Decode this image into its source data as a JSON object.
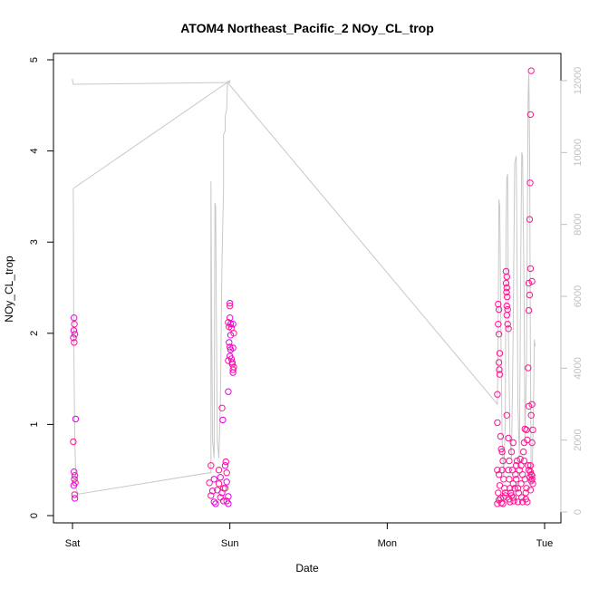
{
  "chart_data": {
    "type": "scatter",
    "title": "ATOM4 Northeast_Pacific_2 NOy_CL_trop",
    "xlabel": "Date",
    "ylabel": "NOy_CL_trop",
    "xlim": [
      0,
      3
    ],
    "x_ticks": [
      {
        "value": 0,
        "label": "Sat"
      },
      {
        "value": 1,
        "label": "Sun"
      },
      {
        "value": 2,
        "label": "Mon"
      },
      {
        "value": 3,
        "label": "Tue"
      }
    ],
    "ylim": [
      0,
      5
    ],
    "y_ticks": [
      0,
      1,
      2,
      3,
      4,
      5
    ],
    "y2lim": [
      0,
      12000
    ],
    "y2_ticks": [
      0,
      2000,
      4000,
      6000,
      8000,
      10000,
      12000
    ],
    "grid": false,
    "colors": {
      "points": "#ff1493",
      "points_alt": "#e600e6",
      "line": "#c8c8c8",
      "frame": "#000000",
      "secondary_axis": "#c0c0c0"
    },
    "series": [
      {
        "kind": "points",
        "values": [
          [
            0.01,
            2.17
          ],
          [
            0.012,
            2.1
          ],
          [
            0.008,
            2.03
          ],
          [
            0.015,
            1.99
          ],
          [
            0.006,
            1.95
          ],
          [
            0.011,
            1.9
          ],
          [
            0.02,
            1.06
          ],
          [
            0.005,
            0.81
          ],
          [
            0.01,
            0.48
          ],
          [
            0.015,
            0.44
          ],
          [
            0.012,
            0.4
          ],
          [
            0.018,
            0.36
          ],
          [
            0.008,
            0.33
          ],
          [
            0.013,
            0.23
          ],
          [
            0.015,
            0.19
          ],
          [
            0.88,
            0.55
          ],
          [
            0.9,
            0.4
          ],
          [
            0.87,
            0.36
          ],
          [
            0.89,
            0.27
          ],
          [
            0.88,
            0.22
          ],
          [
            0.9,
            0.15
          ],
          [
            0.92,
            0.28
          ],
          [
            0.91,
            0.13
          ],
          [
            0.93,
            0.5
          ],
          [
            0.94,
            0.42
          ],
          [
            0.93,
            0.35
          ],
          [
            0.95,
            0.25
          ],
          [
            0.94,
            0.2
          ],
          [
            0.96,
            0.16
          ],
          [
            0.95,
            1.18
          ],
          [
            0.955,
            1.05
          ],
          [
            0.96,
            0.3
          ],
          [
            0.97,
            0.55
          ],
          [
            0.98,
            0.47
          ],
          [
            0.98,
            0.37
          ],
          [
            0.97,
            0.3
          ],
          [
            0.99,
            0.21
          ],
          [
            0.98,
            0.16
          ],
          [
            0.99,
            0.13
          ],
          [
            0.975,
            0.59
          ],
          [
            0.99,
            1.36
          ],
          [
            0.99,
            1.7
          ],
          [
            0.995,
            1.9
          ],
          [
            0.995,
            2.07
          ],
          [
            1.0,
            2.33
          ],
          [
            1.0,
            2.3
          ],
          [
            1.0,
            2.17
          ],
          [
            0.99,
            2.12
          ],
          [
            1.005,
            2.1
          ],
          [
            1.01,
            2.06
          ],
          [
            1.005,
            1.98
          ],
          [
            1.0,
            1.85
          ],
          [
            1.005,
            1.82
          ],
          [
            1.01,
            1.72
          ],
          [
            1.015,
            1.68
          ],
          [
            1.02,
            1.6
          ],
          [
            1.02,
            1.57
          ],
          [
            1.015,
            1.66
          ],
          [
            1.02,
            1.84
          ],
          [
            1.025,
            2.0
          ],
          [
            1.02,
            2.1
          ],
          [
            1.025,
            1.63
          ],
          [
            1.0,
            1.75
          ],
          [
            2.705,
            2.32
          ],
          [
            2.71,
            2.26
          ],
          [
            2.705,
            2.1
          ],
          [
            2.71,
            1.99
          ],
          [
            2.715,
            1.78
          ],
          [
            2.71,
            1.68
          ],
          [
            2.712,
            1.6
          ],
          [
            2.715,
            1.55
          ],
          [
            2.7,
            1.33
          ],
          [
            2.7,
            1.02
          ],
          [
            2.72,
            0.87
          ],
          [
            2.725,
            0.73
          ],
          [
            2.7,
            0.5
          ],
          [
            2.71,
            0.45
          ],
          [
            2.715,
            0.33
          ],
          [
            2.705,
            0.25
          ],
          [
            2.71,
            0.17
          ],
          [
            2.7,
            0.13
          ],
          [
            2.72,
            0.19
          ],
          [
            2.725,
            0.14
          ],
          [
            2.73,
            0.7
          ],
          [
            2.735,
            0.6
          ],
          [
            2.73,
            0.5
          ],
          [
            2.74,
            0.4
          ],
          [
            2.745,
            0.3
          ],
          [
            2.74,
            0.2
          ],
          [
            2.735,
            0.13
          ],
          [
            2.75,
            0.25
          ],
          [
            2.75,
            0.22
          ],
          [
            2.755,
            2.68
          ],
          [
            2.76,
            2.62
          ],
          [
            2.755,
            2.55
          ],
          [
            2.76,
            2.5
          ],
          [
            2.758,
            2.45
          ],
          [
            2.762,
            2.4
          ],
          [
            2.76,
            2.3
          ],
          [
            2.765,
            2.26
          ],
          [
            2.76,
            2.2
          ],
          [
            2.765,
            2.1
          ],
          [
            2.77,
            2.05
          ],
          [
            2.76,
            1.1
          ],
          [
            2.77,
            0.85
          ],
          [
            2.775,
            0.6
          ],
          [
            2.77,
            0.5
          ],
          [
            2.775,
            0.4
          ],
          [
            2.78,
            0.3
          ],
          [
            2.775,
            0.18
          ],
          [
            2.78,
            0.15
          ],
          [
            2.785,
            0.25
          ],
          [
            2.79,
            0.22
          ],
          [
            2.79,
            0.7
          ],
          [
            2.8,
            0.8
          ],
          [
            2.795,
            0.5
          ],
          [
            2.8,
            0.35
          ],
          [
            2.8,
            0.2
          ],
          [
            2.805,
            0.16
          ],
          [
            2.81,
            0.3
          ],
          [
            2.815,
            0.45
          ],
          [
            2.82,
            0.55
          ],
          [
            2.825,
            0.6
          ],
          [
            2.82,
            0.4
          ],
          [
            2.83,
            0.3
          ],
          [
            2.83,
            0.15
          ],
          [
            2.835,
            0.25
          ],
          [
            2.84,
            0.5
          ],
          [
            2.845,
            0.62
          ],
          [
            2.85,
            0.55
          ],
          [
            2.85,
            0.35
          ],
          [
            2.855,
            0.2
          ],
          [
            2.86,
            0.15
          ],
          [
            2.86,
            0.45
          ],
          [
            2.865,
            0.7
          ],
          [
            2.87,
            0.8
          ],
          [
            2.87,
            0.6
          ],
          [
            2.875,
            0.4
          ],
          [
            2.88,
            0.25
          ],
          [
            2.88,
            0.18
          ],
          [
            2.875,
            0.95
          ],
          [
            2.885,
            0.94
          ],
          [
            2.89,
            0.83
          ],
          [
            2.885,
            0.3
          ],
          [
            2.89,
            0.15
          ],
          [
            2.895,
            0.55
          ],
          [
            2.895,
            1.62
          ],
          [
            2.9,
            2.25
          ],
          [
            2.905,
            2.42
          ],
          [
            2.9,
            2.55
          ],
          [
            2.91,
            2.71
          ],
          [
            2.905,
            3.25
          ],
          [
            2.908,
            3.65
          ],
          [
            2.91,
            4.4
          ],
          [
            2.915,
            4.88
          ],
          [
            2.92,
            2.57
          ],
          [
            2.915,
            1.1
          ],
          [
            2.92,
            1.22
          ],
          [
            2.925,
            0.94
          ],
          [
            2.92,
            0.8
          ],
          [
            2.91,
            0.55
          ],
          [
            2.915,
            0.45
          ],
          [
            2.92,
            0.4
          ],
          [
            2.925,
            0.35
          ],
          [
            2.91,
            0.28
          ],
          [
            2.9,
            1.2
          ],
          [
            2.9,
            0.5
          ],
          [
            2.905,
            0.42
          ],
          [
            2.91,
            0.48
          ],
          [
            2.915,
            0.38
          ],
          [
            2.92,
            0.44
          ]
        ]
      },
      {
        "kind": "line",
        "axis": "right",
        "values": [
          [
            0.0,
            12050
          ],
          [
            0.0,
            12000
          ],
          [
            0.005,
            11900
          ],
          [
            1.0,
            11950
          ],
          [
            1.0,
            12000
          ],
          [
            0.005,
            9000
          ],
          [
            0.008,
            5000
          ],
          [
            0.012,
            3000
          ],
          [
            0.015,
            2000
          ],
          [
            0.02,
            1000
          ],
          [
            0.025,
            600
          ],
          [
            0.04,
            500
          ],
          [
            0.88,
            1100
          ],
          [
            0.88,
            9200
          ],
          [
            0.885,
            5000
          ],
          [
            0.89,
            2000
          ],
          [
            0.9,
            1500
          ],
          [
            0.905,
            8600
          ],
          [
            0.91,
            8500
          ],
          [
            0.915,
            5000
          ],
          [
            0.92,
            2000
          ],
          [
            0.93,
            1500
          ],
          [
            0.94,
            3000
          ],
          [
            0.95,
            7000
          ],
          [
            0.96,
            9000
          ],
          [
            0.96,
            10500
          ],
          [
            0.97,
            10600
          ],
          [
            0.97,
            11000
          ],
          [
            0.975,
            11100
          ],
          [
            0.98,
            11200
          ],
          [
            0.985,
            12000
          ],
          [
            0.985,
            11950
          ],
          [
            2.7,
            3000
          ],
          [
            2.705,
            5000
          ],
          [
            2.71,
            8700
          ],
          [
            2.715,
            8500
          ],
          [
            2.72,
            6000
          ],
          [
            2.725,
            4000
          ],
          [
            2.73,
            2000
          ],
          [
            2.74,
            1000
          ],
          [
            2.75,
            2500
          ],
          [
            2.755,
            8000
          ],
          [
            2.76,
            9300
          ],
          [
            2.765,
            9400
          ],
          [
            2.77,
            5000
          ],
          [
            2.78,
            2000
          ],
          [
            2.79,
            1500
          ],
          [
            2.8,
            5000
          ],
          [
            2.81,
            9700
          ],
          [
            2.82,
            9900
          ],
          [
            2.825,
            7000
          ],
          [
            2.83,
            3000
          ],
          [
            2.84,
            1500
          ],
          [
            2.85,
            8000
          ],
          [
            2.855,
            10000
          ],
          [
            2.86,
            9900
          ],
          [
            2.87,
            6000
          ],
          [
            2.875,
            2000
          ],
          [
            2.885,
            4000
          ],
          [
            2.895,
            11500
          ],
          [
            2.9,
            12200
          ],
          [
            2.905,
            10000
          ],
          [
            2.91,
            4000
          ],
          [
            2.915,
            1000
          ],
          [
            2.92,
            800
          ],
          [
            2.93,
            3000
          ],
          [
            2.935,
            4800
          ],
          [
            2.94,
            4600
          ]
        ]
      }
    ]
  }
}
